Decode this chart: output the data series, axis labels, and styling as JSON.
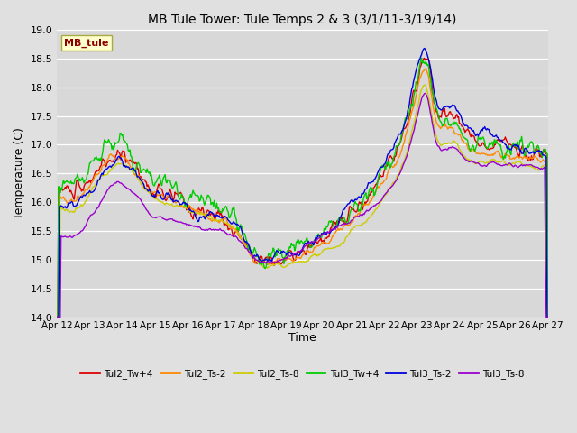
{
  "title": "MB Tule Tower: Tule Temps 2 & 3 (3/1/11-3/19/14)",
  "ylabel": "Temperature (C)",
  "xlabel": "Time",
  "ylim": [
    14.0,
    19.0
  ],
  "yticks": [
    14.0,
    14.5,
    15.0,
    15.5,
    16.0,
    16.5,
    17.0,
    17.5,
    18.0,
    18.5,
    19.0
  ],
  "x_labels": [
    "Apr 12",
    "Apr 13",
    "Apr 14",
    "Apr 15",
    "Apr 16",
    "Apr 17",
    "Apr 18",
    "Apr 19",
    "Apr 20",
    "Apr 21",
    "Apr 22",
    "Apr 23",
    "Apr 24",
    "Apr 25",
    "Apr 26",
    "Apr 27"
  ],
  "legend_label": "MB_tule",
  "legend_box_color": "#ffffcc",
  "legend_text_color": "#8b0000",
  "bg_color": "#e0e0e0",
  "plot_bg_color": "#d8d8d8",
  "grid_color": "#ffffff",
  "series": [
    {
      "name": "Tul2_Tw+4",
      "color": "#dd0000",
      "lw": 1.0
    },
    {
      "name": "Tul2_Ts-2",
      "color": "#ff8800",
      "lw": 1.0
    },
    {
      "name": "Tul2_Ts-8",
      "color": "#cccc00",
      "lw": 1.0
    },
    {
      "name": "Tul3_Tw+4",
      "color": "#00cc00",
      "lw": 1.0
    },
    {
      "name": "Tul3_Ts-2",
      "color": "#0000dd",
      "lw": 1.0
    },
    {
      "name": "Tul3_Ts-8",
      "color": "#9900cc",
      "lw": 1.0
    }
  ]
}
